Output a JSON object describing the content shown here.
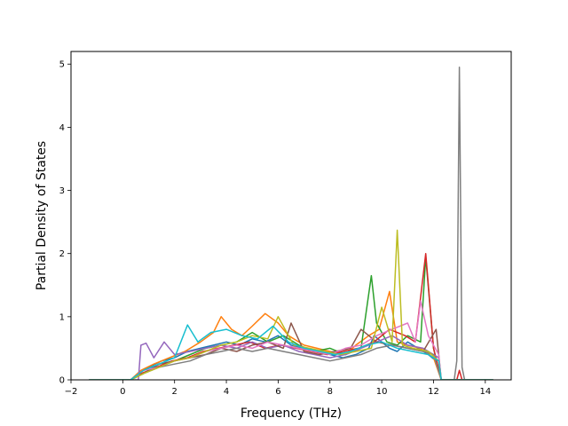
{
  "chart_data": {
    "type": "line",
    "title": "",
    "xlabel": "Frequency (THz)",
    "ylabel": "Partial Density of States",
    "xlim": [
      -2.0,
      15.0
    ],
    "ylim": [
      0,
      5.2
    ],
    "xticks": [
      -2,
      0,
      2,
      4,
      6,
      8,
      10,
      12,
      14
    ],
    "xtick_labels": [
      "−2",
      "0",
      "2",
      "4",
      "6",
      "8",
      "10",
      "12",
      "14"
    ],
    "yticks": [
      0,
      1,
      2,
      3,
      4,
      5
    ],
    "ytick_labels": [
      "0",
      "1",
      "2",
      "3",
      "4",
      "5"
    ],
    "grid": false,
    "legend": "none",
    "colors": [
      "#1f77b4",
      "#ff7f0e",
      "#2ca02c",
      "#d62728",
      "#9467bd",
      "#8c564b",
      "#e377c2",
      "#7f7f7f",
      "#bcbd22",
      "#17becf"
    ],
    "series": [
      {
        "x": [
          -1.3,
          0.3,
          0.6,
          1.0,
          1.5,
          2.0,
          2.5,
          3.0,
          3.5,
          4.0,
          4.5,
          5.0,
          5.5,
          6.0,
          6.5,
          7.0,
          7.5,
          8.0,
          8.5,
          9.0,
          9.5,
          9.7,
          10.0,
          10.3,
          10.6,
          11.0,
          11.4,
          11.8,
          12.1,
          12.3,
          13.0,
          14.3
        ],
        "y": [
          0,
          0,
          0.1,
          0.2,
          0.3,
          0.35,
          0.45,
          0.5,
          0.55,
          0.6,
          0.55,
          0.65,
          0.6,
          0.7,
          0.55,
          0.5,
          0.45,
          0.4,
          0.35,
          0.4,
          0.5,
          0.7,
          0.6,
          0.5,
          0.45,
          0.6,
          0.5,
          0.4,
          0.3,
          0,
          0,
          0
        ]
      },
      {
        "x": [
          -1.3,
          0.3,
          0.7,
          1.2,
          1.8,
          2.4,
          3.0,
          3.5,
          3.8,
          4.2,
          4.6,
          5.0,
          5.5,
          6.0,
          6.4,
          7.0,
          7.5,
          8.0,
          8.6,
          9.0,
          9.5,
          9.9,
          10.3,
          10.6,
          11.0,
          11.5,
          12.0,
          12.3,
          14.3
        ],
        "y": [
          0,
          0,
          0.15,
          0.25,
          0.35,
          0.45,
          0.6,
          0.75,
          1.0,
          0.8,
          0.7,
          0.85,
          1.05,
          0.9,
          0.7,
          0.55,
          0.5,
          0.45,
          0.4,
          0.55,
          0.7,
          0.8,
          1.4,
          0.6,
          0.55,
          0.5,
          0.35,
          0,
          0
        ]
      },
      {
        "x": [
          -1.3,
          0.3,
          0.8,
          1.4,
          2.0,
          2.6,
          3.2,
          3.8,
          4.4,
          5.0,
          5.6,
          6.2,
          6.8,
          7.4,
          8.0,
          8.6,
          9.2,
          9.6,
          9.8,
          10.2,
          10.6,
          11.0,
          11.5,
          11.7,
          12.0,
          12.3,
          14.3
        ],
        "y": [
          0,
          0,
          0.1,
          0.25,
          0.3,
          0.4,
          0.5,
          0.55,
          0.6,
          0.75,
          0.6,
          0.7,
          0.55,
          0.45,
          0.5,
          0.4,
          0.5,
          1.65,
          0.9,
          0.6,
          0.55,
          0.7,
          0.6,
          1.95,
          0.5,
          0,
          0
        ]
      },
      {
        "x": [
          -1.3,
          0.3,
          0.7,
          1.3,
          1.9,
          2.5,
          3.1,
          3.7,
          4.3,
          4.9,
          5.5,
          6.1,
          6.7,
          7.3,
          7.9,
          8.5,
          9.1,
          9.7,
          10.3,
          10.9,
          11.3,
          11.7,
          12.0,
          12.3,
          12.9,
          13.0,
          13.1,
          14.3
        ],
        "y": [
          0,
          0,
          0.1,
          0.2,
          0.3,
          0.35,
          0.45,
          0.5,
          0.55,
          0.6,
          0.5,
          0.55,
          0.5,
          0.45,
          0.4,
          0.45,
          0.5,
          0.6,
          0.8,
          0.7,
          0.6,
          2.0,
          0.5,
          0,
          0,
          0.15,
          0,
          0
        ]
      },
      {
        "x": [
          -1.3,
          0.6,
          0.7,
          0.9,
          1.2,
          1.6,
          2.0,
          2.6,
          3.2,
          3.8,
          4.4,
          5.0,
          5.6,
          6.2,
          6.8,
          7.4,
          8.0,
          8.6,
          9.2,
          9.8,
          10.4,
          11.0,
          11.6,
          12.2,
          12.3,
          14.3
        ],
        "y": [
          0,
          0,
          0.55,
          0.58,
          0.35,
          0.6,
          0.4,
          0.45,
          0.5,
          0.55,
          0.5,
          0.6,
          0.5,
          0.55,
          0.45,
          0.4,
          0.35,
          0.4,
          0.5,
          0.6,
          0.7,
          0.55,
          0.5,
          0.35,
          0,
          0
        ]
      },
      {
        "x": [
          -1.3,
          0.3,
          0.8,
          1.4,
          2.0,
          2.6,
          3.2,
          3.8,
          4.4,
          5.0,
          5.6,
          6.2,
          6.5,
          7.0,
          7.6,
          8.2,
          8.8,
          9.2,
          9.8,
          10.4,
          11.0,
          11.6,
          12.1,
          12.3,
          14.3
        ],
        "y": [
          0,
          0,
          0.1,
          0.25,
          0.3,
          0.35,
          0.4,
          0.5,
          0.45,
          0.55,
          0.6,
          0.5,
          0.9,
          0.45,
          0.4,
          0.45,
          0.5,
          0.8,
          0.6,
          0.55,
          0.5,
          0.45,
          0.8,
          0,
          0
        ]
      },
      {
        "x": [
          -1.3,
          0.3,
          0.8,
          1.4,
          2.0,
          2.6,
          3.2,
          3.8,
          4.4,
          5.0,
          5.6,
          6.2,
          6.8,
          7.4,
          8.0,
          8.6,
          9.2,
          9.8,
          10.4,
          11.0,
          11.3,
          11.5,
          11.8,
          12.2,
          12.3,
          14.3
        ],
        "y": [
          0,
          0,
          0.15,
          0.2,
          0.3,
          0.35,
          0.45,
          0.5,
          0.55,
          0.5,
          0.6,
          0.55,
          0.5,
          0.45,
          0.4,
          0.5,
          0.55,
          0.7,
          0.8,
          0.9,
          0.6,
          1.25,
          0.7,
          0.4,
          0,
          0
        ]
      },
      {
        "x": [
          -1.3,
          0.3,
          0.8,
          1.4,
          2.0,
          2.6,
          3.2,
          3.8,
          4.4,
          5.0,
          5.6,
          6.2,
          6.8,
          7.4,
          8.0,
          8.6,
          9.2,
          9.8,
          10.4,
          11.0,
          11.6,
          12.0,
          12.3,
          12.8,
          12.9,
          13.0,
          13.1,
          13.2,
          14.3
        ],
        "y": [
          0,
          0,
          0.1,
          0.2,
          0.25,
          0.3,
          0.4,
          0.45,
          0.5,
          0.45,
          0.5,
          0.45,
          0.4,
          0.35,
          0.3,
          0.35,
          0.4,
          0.5,
          0.55,
          0.5,
          0.45,
          0.4,
          0,
          0,
          0.3,
          4.95,
          0.2,
          0,
          0
        ]
      },
      {
        "x": [
          -1.3,
          0.3,
          0.8,
          1.4,
          2.0,
          2.6,
          3.2,
          3.8,
          4.4,
          5.0,
          5.6,
          6.0,
          6.6,
          7.2,
          7.8,
          8.4,
          9.0,
          9.6,
          10.0,
          10.4,
          10.6,
          10.8,
          11.2,
          11.8,
          12.2,
          12.3,
          14.3
        ],
        "y": [
          0,
          0,
          0.1,
          0.2,
          0.3,
          0.35,
          0.45,
          0.55,
          0.6,
          0.7,
          0.65,
          1.0,
          0.55,
          0.5,
          0.45,
          0.4,
          0.45,
          0.5,
          1.15,
          0.6,
          2.37,
          0.55,
          0.5,
          0.45,
          0.3,
          0,
          0
        ]
      },
      {
        "x": [
          -1.3,
          0.3,
          0.8,
          1.4,
          2.0,
          2.5,
          2.9,
          3.4,
          4.0,
          4.6,
          5.2,
          5.8,
          6.4,
          7.0,
          7.6,
          8.2,
          8.8,
          9.4,
          10.0,
          10.6,
          11.2,
          11.8,
          12.2,
          12.3,
          14.3
        ],
        "y": [
          0,
          0,
          0.15,
          0.25,
          0.35,
          0.87,
          0.6,
          0.75,
          0.8,
          0.7,
          0.65,
          0.85,
          0.6,
          0.5,
          0.45,
          0.4,
          0.45,
          0.55,
          0.6,
          0.5,
          0.45,
          0.4,
          0.3,
          0,
          0
        ]
      }
    ]
  }
}
